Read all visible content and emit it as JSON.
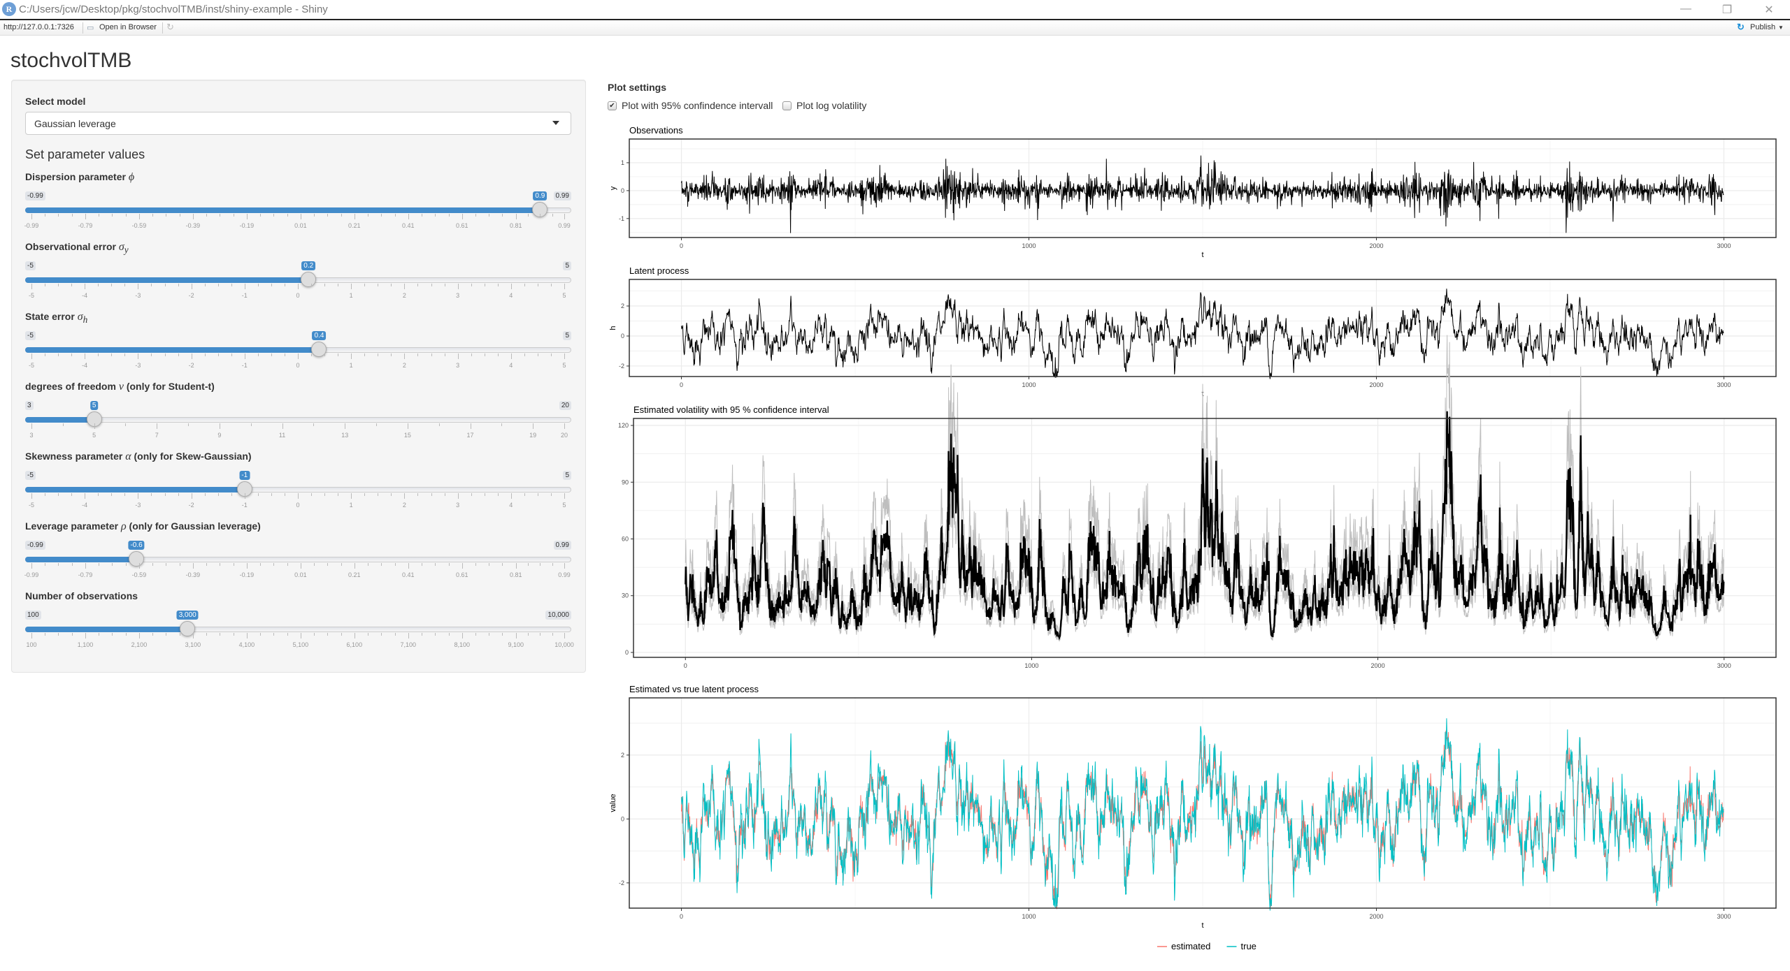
{
  "window": {
    "title": "C:/Users/jcw/Desktop/pkg/stochvolTMB/inst/shiny-example - Shiny",
    "url": "http://127.0.0.1:7326",
    "open_in_browser": "Open in Browser",
    "publish": "Publish",
    "icon_letter": "R"
  },
  "app_title": "stochvolTMB",
  "sidebar": {
    "select_label": "Select model",
    "select_value": "Gaussian leverage",
    "section_heading": "Set parameter values",
    "sliders": [
      {
        "label": "Dispersion parameter ",
        "symbol": "ϕ",
        "sub": "",
        "suffix": "",
        "min": -0.99,
        "max": 0.99,
        "value": 0.9,
        "min_label": "-0.99",
        "max_label": "0.99",
        "value_label": "0.9",
        "ticks": [
          "-0.99",
          "-0.79",
          "-0.59",
          "-0.39",
          "-0.19",
          "0.01",
          "0.21",
          "0.41",
          "0.61",
          "0.81",
          "0.99"
        ]
      },
      {
        "label": "Observational error ",
        "symbol": "σ",
        "sub": "y",
        "suffix": "",
        "min": -5,
        "max": 5,
        "value": 0.2,
        "min_label": "-5",
        "max_label": "5",
        "value_label": "0.2",
        "ticks": [
          "-5",
          "-4",
          "-3",
          "-2",
          "-1",
          "0",
          "1",
          "2",
          "3",
          "4",
          "5"
        ]
      },
      {
        "label": "State error ",
        "symbol": "σ",
        "sub": "h",
        "suffix": "",
        "min": -5,
        "max": 5,
        "value": 0.4,
        "min_label": "-5",
        "max_label": "5",
        "value_label": "0.4",
        "ticks": [
          "-5",
          "-4",
          "-3",
          "-2",
          "-1",
          "0",
          "1",
          "2",
          "3",
          "4",
          "5"
        ]
      },
      {
        "label": "degrees of freedom ",
        "symbol": "ν",
        "sub": "",
        "suffix": " (only for Student-t)",
        "min": 3,
        "max": 20,
        "value": 5,
        "min_label": "3",
        "max_label": "20",
        "value_label": "5",
        "ticks": [
          "3",
          "5",
          "7",
          "9",
          "11",
          "13",
          "15",
          "17",
          "19",
          "20"
        ]
      },
      {
        "label": "Skewness parameter ",
        "symbol": "α",
        "sub": "",
        "suffix": " (only for Skew-Gaussian)",
        "min": -5,
        "max": 5,
        "value": -1,
        "min_label": "-5",
        "max_label": "5",
        "value_label": "-1",
        "ticks": [
          "-5",
          "-4",
          "-3",
          "-2",
          "-1",
          "0",
          "1",
          "2",
          "3",
          "4",
          "5"
        ]
      },
      {
        "label": "Leverage parameter ",
        "symbol": "ρ",
        "sub": "",
        "suffix": " (only for Gaussian leverage)",
        "min": -0.99,
        "max": 0.99,
        "value": -0.6,
        "min_label": "-0.99",
        "max_label": "0.99",
        "value_label": "-0.6",
        "ticks": [
          "-0.99",
          "-0.79",
          "-0.59",
          "-0.39",
          "-0.19",
          "0.01",
          "0.21",
          "0.41",
          "0.61",
          "0.81",
          "0.99"
        ]
      },
      {
        "label": "Number of observations",
        "symbol": "",
        "sub": "",
        "suffix": "",
        "min": 100,
        "max": 10000,
        "value": 3000,
        "min_label": "100",
        "max_label": "10,000",
        "value_label": "3,000",
        "ticks": [
          "100",
          "1,100",
          "2,100",
          "3,100",
          "4,100",
          "5,100",
          "6,100",
          "7,100",
          "8,100",
          "9,100",
          "10,000"
        ]
      }
    ]
  },
  "plot_settings": {
    "heading": "Plot settings",
    "checkboxes": [
      {
        "label": "Plot with 95% confindence intervall",
        "checked": true
      },
      {
        "label": "Plot log volatility",
        "checked": false
      }
    ]
  },
  "accent": "#428bca",
  "chart_data": [
    {
      "type": "line",
      "title": "Observations",
      "xlabel": "t",
      "ylabel": "y",
      "xlim": [
        -150,
        3150
      ],
      "ylim": [
        -1.68,
        1.85
      ],
      "xticks": [
        0,
        1000,
        2000,
        3000
      ],
      "yticks": [
        -1,
        0,
        1
      ],
      "grid": true,
      "series": [
        {
          "color": "#000000"
        }
      ]
    },
    {
      "type": "line",
      "title": "Latent process",
      "xlabel": "t",
      "ylabel": "h",
      "xlim": [
        -150,
        3150
      ],
      "ylim": [
        -2.7,
        3.77
      ],
      "xticks": [
        0,
        1000,
        2000,
        3000
      ],
      "yticks": [
        -2,
        0,
        2
      ],
      "grid": true,
      "series": [
        {
          "color": "#000000"
        }
      ]
    },
    {
      "type": "line",
      "title": "Estimated volatility with 95 % confidence interval",
      "xlabel": "",
      "ylabel": "",
      "xlim": [
        -150,
        3150
      ],
      "ylim": [
        -2.6,
        123.7
      ],
      "xticks": [
        0,
        1000,
        2000,
        3000
      ],
      "yticks": [
        0,
        30,
        60,
        90,
        120
      ],
      "grid": true,
      "series": [
        {
          "color": "#bebebe"
        },
        {
          "color": "#bebebe"
        },
        {
          "color": "#000000"
        }
      ]
    },
    {
      "type": "line",
      "title": "Estimated vs true latent process",
      "xlabel": "t",
      "ylabel": "value",
      "xlim": [
        -150,
        3150
      ],
      "ylim": [
        -2.79,
        3.79
      ],
      "xticks": [
        0,
        1000,
        2000,
        3000
      ],
      "yticks": [
        -2,
        0,
        2
      ],
      "grid": true,
      "legend": "bottom",
      "series": [
        {
          "name": "estimated",
          "color": "#F8766D"
        },
        {
          "name": "true",
          "color": "#00BFC4"
        }
      ]
    }
  ]
}
